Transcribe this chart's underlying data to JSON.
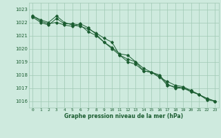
{
  "xlabel": "Graphe pression niveau de la mer (hPa)",
  "background_color": "#ceeade",
  "grid_color": "#a0c8b4",
  "line_color": "#1a5c30",
  "xlim": [
    -0.5,
    23.5
  ],
  "ylim": [
    1015.5,
    1023.5
  ],
  "yticks": [
    1016,
    1017,
    1018,
    1019,
    1020,
    1021,
    1022,
    1023
  ],
  "xticks": [
    0,
    1,
    2,
    3,
    4,
    5,
    6,
    7,
    8,
    9,
    10,
    11,
    12,
    13,
    14,
    15,
    16,
    17,
    18,
    19,
    20,
    21,
    22,
    23
  ],
  "series": [
    [
      1022.5,
      1022.2,
      1022.0,
      1022.5,
      1022.0,
      1021.8,
      1021.7,
      1021.5,
      1021.2,
      1020.8,
      1020.5,
      1019.5,
      1019.2,
      1019.0,
      1018.3,
      1018.2,
      1017.8,
      1017.5,
      1017.2,
      1017.1,
      1016.8,
      1016.5,
      1016.2,
      1016.0
    ],
    [
      1022.4,
      1022.0,
      1021.8,
      1022.3,
      1021.9,
      1021.9,
      1021.8,
      1021.3,
      1021.0,
      1020.5,
      1020.0,
      1019.5,
      1019.0,
      1018.8,
      1018.3,
      1018.2,
      1017.9,
      1017.2,
      1017.1,
      1017.0,
      1016.8,
      1016.5,
      1016.2,
      1016.0
    ],
    [
      1022.5,
      1022.1,
      1021.9,
      1022.0,
      1021.8,
      1021.7,
      1021.9,
      1021.6,
      1021.1,
      1020.5,
      1020.1,
      1019.6,
      1019.5,
      1019.0,
      1018.5,
      1018.2,
      1018.0,
      1017.3,
      1017.0,
      1017.0,
      1016.7,
      1016.5,
      1016.1,
      1016.0
    ]
  ]
}
